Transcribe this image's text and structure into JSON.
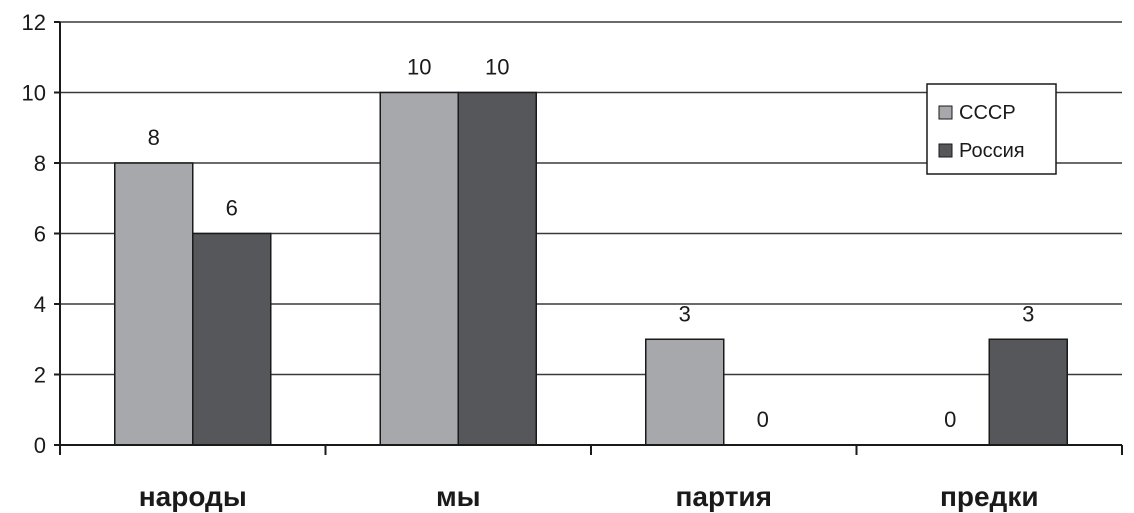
{
  "chart_data": {
    "type": "bar",
    "categories": [
      "народы",
      "мы",
      "партия",
      "предки"
    ],
    "series": [
      {
        "name": "СССР",
        "values": [
          8,
          10,
          3,
          0
        ],
        "color": "#a7a8ab"
      },
      {
        "name": "Россия",
        "values": [
          6,
          10,
          0,
          3
        ],
        "color": "#56575b"
      }
    ],
    "ylim": [
      0,
      12
    ],
    "yticks": [
      0,
      2,
      4,
      6,
      8,
      10,
      12
    ],
    "grid": true,
    "legend_position": "top-right",
    "title": "",
    "xlabel": "",
    "ylabel": ""
  }
}
